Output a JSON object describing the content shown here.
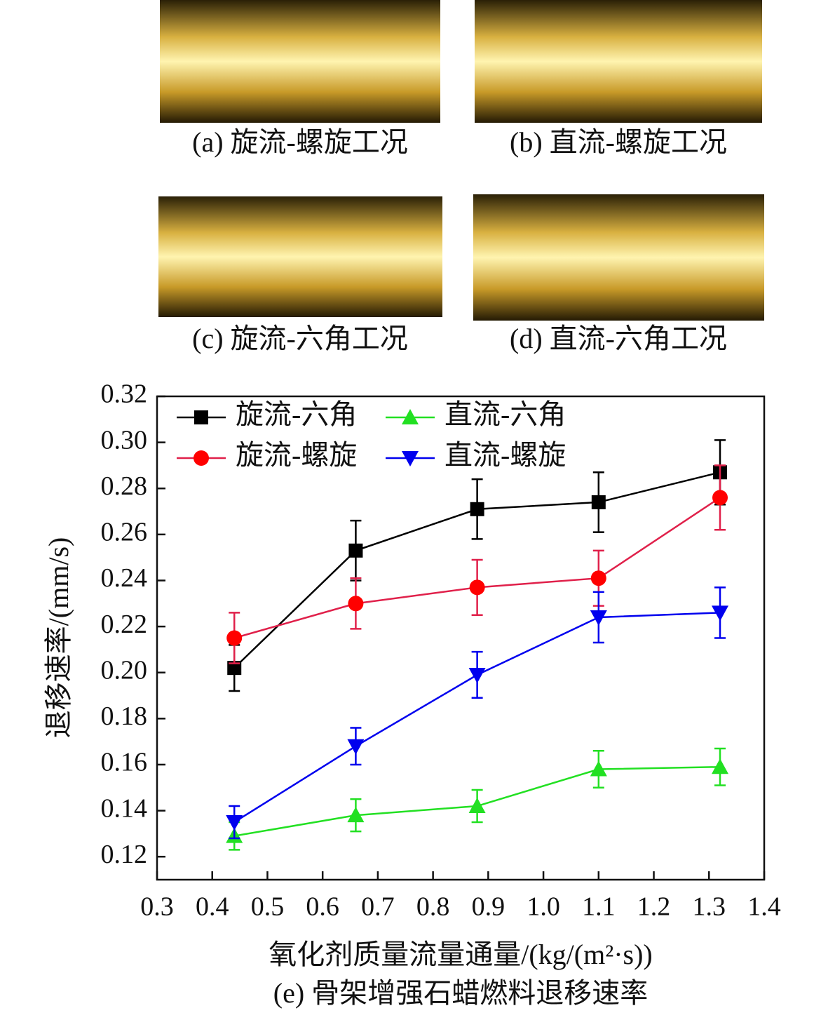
{
  "photos": [
    {
      "caption": "(a) 旋流-螺旋工况"
    },
    {
      "caption": "(b) 直流-螺旋工况"
    },
    {
      "caption": "(c) 旋流-六角工况"
    },
    {
      "caption": "(d) 直流-六角工况"
    }
  ],
  "chart_data": {
    "type": "line",
    "caption": "(e) 骨架增强石蜡燃料退移速率",
    "x_label": "氧化剂质量流量通量/(kg/(m²·s))",
    "y_label": "退移速率/(mm/s)",
    "x": [
      0.44,
      0.66,
      0.88,
      1.1,
      1.32
    ],
    "series": [
      {
        "name": "旋流-六角",
        "color": "#000000",
        "marker": "square",
        "values": [
          0.202,
          0.253,
          0.271,
          0.274,
          0.287
        ],
        "errors": [
          0.01,
          0.013,
          0.013,
          0.013,
          0.014
        ]
      },
      {
        "name": "旋流-螺旋",
        "color": "#ff0000",
        "line_color": "#e0204a",
        "marker": "circle",
        "values": [
          0.215,
          0.23,
          0.237,
          0.241,
          0.276
        ],
        "errors": [
          0.011,
          0.011,
          0.012,
          0.012,
          0.014
        ]
      },
      {
        "name": "直流-六角",
        "color": "#22e022",
        "marker": "triangle-up",
        "values": [
          0.129,
          0.138,
          0.142,
          0.158,
          0.159
        ],
        "errors": [
          0.006,
          0.007,
          0.007,
          0.008,
          0.008
        ]
      },
      {
        "name": "直流-螺旋",
        "color": "#0000ee",
        "marker": "triangle-down",
        "values": [
          0.135,
          0.168,
          0.199,
          0.224,
          0.226
        ],
        "errors": [
          0.007,
          0.008,
          0.01,
          0.011,
          0.011
        ]
      }
    ],
    "xlim": [
      0.3,
      1.4
    ],
    "xticks": [
      0.3,
      0.4,
      0.5,
      0.6,
      0.7,
      0.8,
      0.9,
      {
        "value": 1,
        "label": "1.0"
      },
      1.1,
      1.2,
      1.3,
      1.4
    ],
    "ylim": [
      0.11,
      0.32
    ],
    "yticks": [
      0.12,
      0.14,
      0.16,
      0.18,
      {
        "value": 0.2,
        "label": "0.20"
      },
      0.22,
      0.24,
      0.26,
      0.28,
      {
        "value": 0.3,
        "label": "0.30"
      },
      0.32
    ],
    "legend": "upper left"
  }
}
